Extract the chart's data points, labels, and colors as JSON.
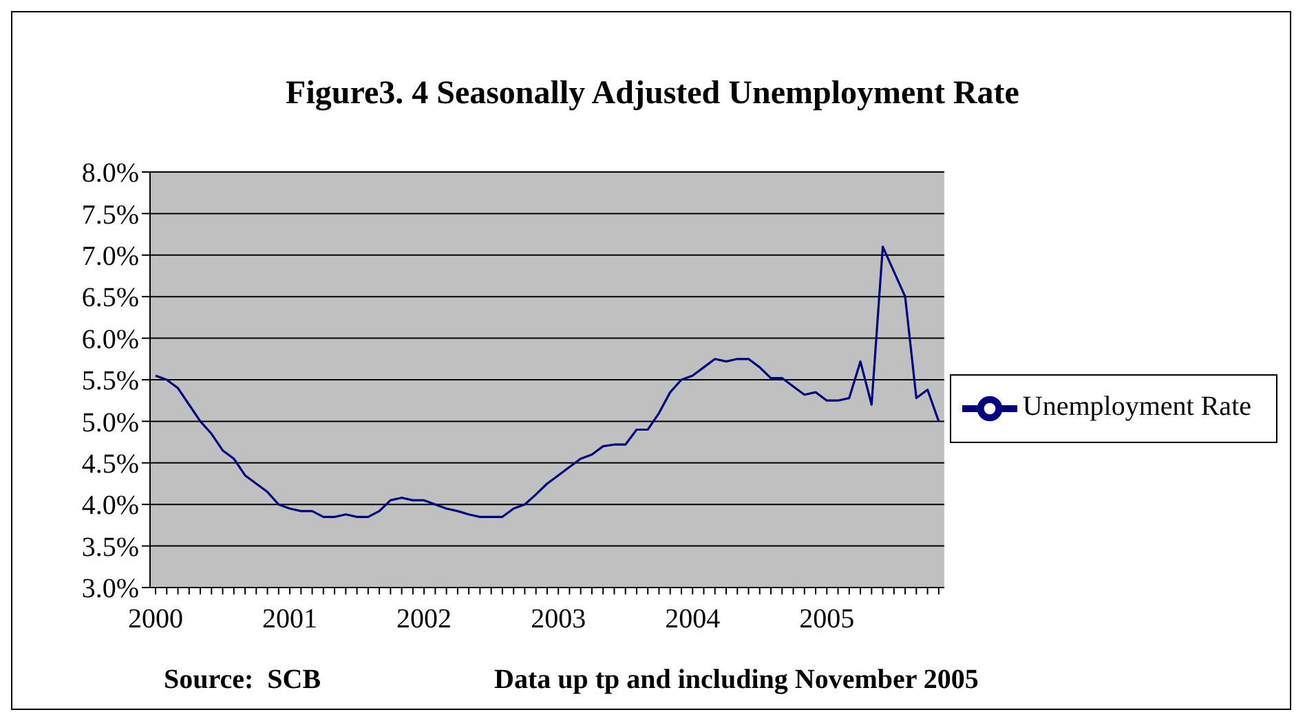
{
  "chart_data": {
    "type": "line",
    "title": "Figure3. 4 Seasonally Adjusted Unemployment Rate",
    "categories": [
      "2000",
      null,
      null,
      null,
      null,
      null,
      null,
      null,
      null,
      null,
      null,
      null,
      "2001",
      null,
      null,
      null,
      null,
      null,
      null,
      null,
      null,
      null,
      null,
      null,
      "2002",
      null,
      null,
      null,
      null,
      null,
      null,
      null,
      null,
      null,
      null,
      null,
      "2003",
      null,
      null,
      null,
      null,
      null,
      null,
      null,
      null,
      null,
      null,
      null,
      "2004",
      null,
      null,
      null,
      null,
      null,
      null,
      null,
      null,
      null,
      null,
      null,
      "2005",
      null,
      null,
      null,
      null,
      null,
      null,
      null,
      null,
      null,
      null
    ],
    "series": [
      {
        "name": "Unemployment Rate",
        "color": "#000080",
        "values": [
          5.55,
          5.5,
          5.4,
          5.2,
          5.0,
          4.85,
          4.65,
          4.55,
          4.35,
          4.25,
          4.15,
          4.0,
          3.95,
          3.92,
          3.92,
          3.85,
          3.85,
          3.88,
          3.85,
          3.85,
          3.92,
          4.05,
          4.08,
          4.05,
          4.05,
          4.0,
          3.95,
          3.92,
          3.88,
          3.85,
          3.85,
          3.85,
          3.95,
          4.0,
          4.12,
          4.25,
          4.35,
          4.45,
          4.55,
          4.6,
          4.7,
          4.72,
          4.72,
          4.9,
          4.9,
          5.1,
          5.35,
          5.5,
          5.55,
          5.65,
          5.75,
          5.72,
          5.75,
          5.75,
          5.65,
          5.52,
          5.52,
          5.42,
          5.32,
          5.35,
          5.25,
          5.25,
          5.28,
          5.72,
          5.2,
          7.1,
          6.8,
          6.5,
          5.28,
          5.38,
          5.0
        ]
      }
    ],
    "ylim": [
      3,
      8
    ],
    "yticks": [
      {
        "value": 3,
        "label": "3.0%"
      },
      {
        "value": 3.5,
        "label": "3.5%"
      },
      {
        "value": 4,
        "label": "4.0%"
      },
      {
        "value": 4.5,
        "label": "4.5%"
      },
      {
        "value": 5,
        "label": "5.0%"
      },
      {
        "value": 5.5,
        "label": "5.5%"
      },
      {
        "value": 6,
        "label": "6.0%"
      },
      {
        "value": 6.5,
        "label": "6.5%"
      },
      {
        "value": 7,
        "label": "7.0%"
      },
      {
        "value": 7.5,
        "label": "7.5%"
      },
      {
        "value": 8,
        "label": "8.0%"
      }
    ],
    "grid": "y",
    "legend": "right",
    "marker": "none",
    "line_style": "solid",
    "annotations": [
      "Source:  SCB",
      "Data up tp and including November 2005"
    ]
  }
}
